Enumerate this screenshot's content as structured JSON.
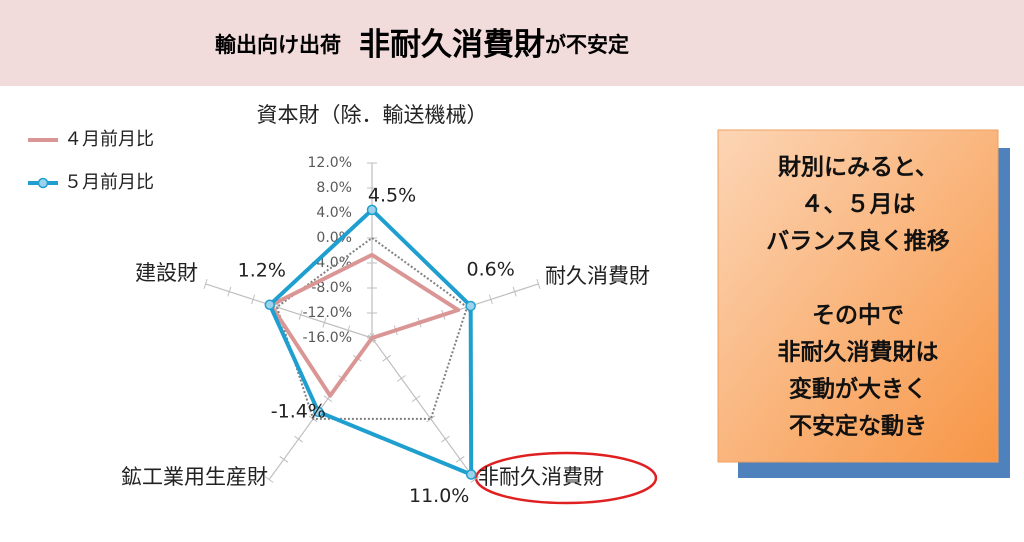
{
  "header": {
    "prefix": "輸出向け出荷",
    "highlight": "非耐久消費財",
    "suffix": "が不安定"
  },
  "chart_data": {
    "type": "radar",
    "categories": [
      "資本財（除．輸送機械）",
      "耐久消費財",
      "非耐久消費財",
      "鉱工業用生産財",
      "建設財"
    ],
    "series": [
      {
        "name": "４月前月比",
        "color": "#d99694",
        "marker": false,
        "values": [
          -2.7,
          -1.5,
          -16.0,
          -4.6,
          1.0
        ]
      },
      {
        "name": "５月前月比",
        "color": "#1f9fcf",
        "marker": true,
        "values": [
          4.5,
          0.6,
          11.0,
          -1.4,
          1.2
        ],
        "value_labels": [
          "4.5%",
          "0.6%",
          "11.0%",
          "-1.4%",
          "1.2%"
        ]
      }
    ],
    "ylim": [
      -16,
      12
    ],
    "yticks": [
      {
        "value": -16,
        "label": "-16.0%"
      },
      {
        "value": -12,
        "label": "-12.0%"
      },
      {
        "value": -8,
        "label": "-8.0%"
      },
      {
        "value": -4,
        "label": "-4.0%"
      },
      {
        "value": 0,
        "label": "0.0%"
      },
      {
        "value": 4,
        "label": "4.0%"
      },
      {
        "value": 8,
        "label": "8.0%"
      },
      {
        "value": 12,
        "label": "12.0%"
      }
    ],
    "zero_line": true
  },
  "box": {
    "paragraphs": [
      [
        "財別にみると、",
        "４、５月は",
        "バランス良く推移"
      ],
      [
        "その中で",
        "非耐久消費財は",
        "変動が大きく",
        "不安定な動き"
      ]
    ]
  }
}
